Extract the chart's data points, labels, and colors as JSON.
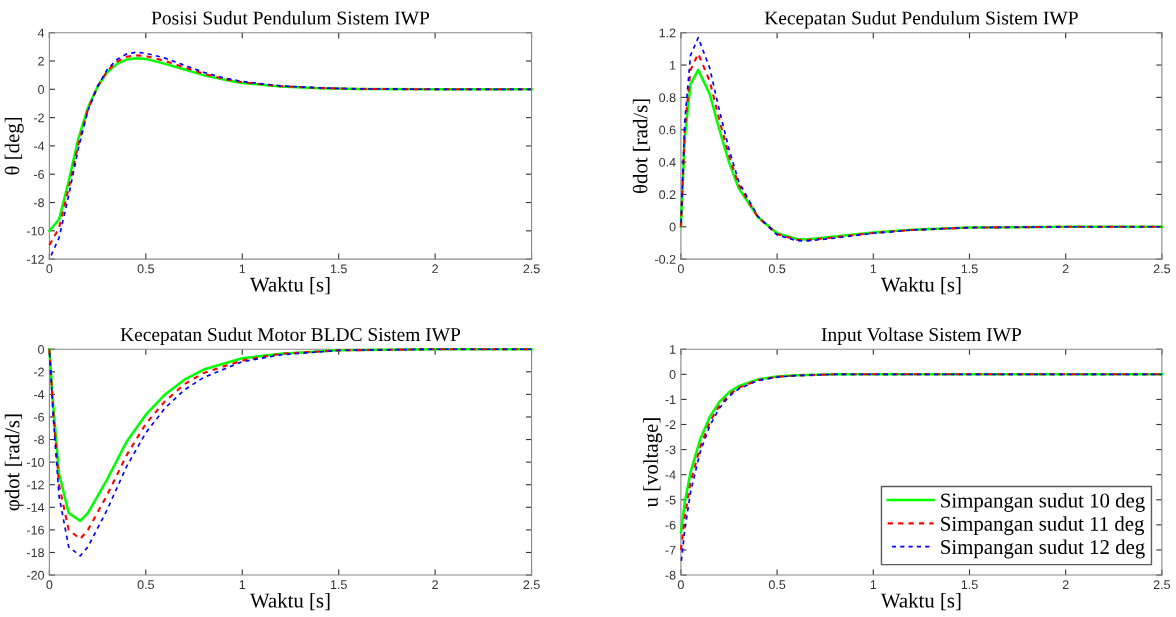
{
  "chart_data": [
    {
      "type": "line",
      "title": "Posisi Sudut Pendulum Sistem IWP",
      "xlabel": "Waktu [s]",
      "ylabel": "θ [deg]",
      "xlim": [
        0,
        2.5
      ],
      "xticks": [
        0,
        0.5,
        1,
        1.5,
        2,
        2.5
      ],
      "ylim": [
        -12,
        4
      ],
      "yticks": [
        -12,
        -10,
        -8,
        -6,
        -4,
        -2,
        0,
        2,
        4
      ],
      "grid": false,
      "legend": false,
      "marker": "none",
      "x": [
        0,
        0.05,
        0.1,
        0.15,
        0.2,
        0.25,
        0.3,
        0.35,
        0.4,
        0.45,
        0.5,
        0.6,
        0.7,
        0.8,
        0.9,
        1.0,
        1.2,
        1.4,
        1.6,
        2.0,
        2.5
      ],
      "series": [
        {
          "color": "#00ff00",
          "line_style": "solid",
          "values": [
            -10,
            -9.2,
            -6.5,
            -3.5,
            -1.3,
            0.2,
            1.2,
            1.8,
            2.1,
            2.2,
            2.15,
            1.8,
            1.4,
            1.0,
            0.7,
            0.45,
            0.2,
            0.08,
            0.03,
            0,
            0
          ]
        },
        {
          "color": "#ff0000",
          "line_style": "dashed",
          "values": [
            -11,
            -9.8,
            -7.0,
            -3.9,
            -1.4,
            0.2,
            1.3,
            1.95,
            2.3,
            2.4,
            2.35,
            2.0,
            1.55,
            1.1,
            0.75,
            0.5,
            0.22,
            0.09,
            0.03,
            0,
            0
          ]
        },
        {
          "color": "#0000ff",
          "line_style": "dashed",
          "values": [
            -12,
            -10.5,
            -7.5,
            -4.2,
            -1.5,
            0.2,
            1.4,
            2.1,
            2.5,
            2.62,
            2.55,
            2.2,
            1.7,
            1.2,
            0.82,
            0.55,
            0.24,
            0.1,
            0.03,
            0,
            0
          ]
        }
      ]
    },
    {
      "type": "line",
      "title": "Kecepatan Sudut Pendulum Sistem IWP",
      "xlabel": "Waktu [s]",
      "ylabel": "θdot [rad/s]",
      "xlim": [
        0,
        2.5
      ],
      "xticks": [
        0,
        0.5,
        1,
        1.5,
        2,
        2.5
      ],
      "ylim": [
        -0.2,
        1.2
      ],
      "yticks": [
        -0.2,
        0,
        0.2,
        0.4,
        0.6,
        0.8,
        1,
        1.2
      ],
      "grid": false,
      "legend": false,
      "marker": "none",
      "x": [
        0,
        0.02,
        0.05,
        0.09,
        0.15,
        0.2,
        0.25,
        0.3,
        0.4,
        0.5,
        0.6,
        0.65,
        0.8,
        1.0,
        1.2,
        1.5,
        2.0,
        2.5
      ],
      "series": [
        {
          "color": "#00ff00",
          "line_style": "solid",
          "values": [
            0,
            0.55,
            0.88,
            0.97,
            0.82,
            0.6,
            0.4,
            0.24,
            0.06,
            -0.04,
            -0.075,
            -0.078,
            -0.06,
            -0.035,
            -0.018,
            -0.005,
            0,
            0
          ]
        },
        {
          "color": "#ff0000",
          "line_style": "dashed",
          "values": [
            0,
            0.6,
            0.97,
            1.07,
            0.9,
            0.66,
            0.44,
            0.26,
            0.06,
            -0.045,
            -0.08,
            -0.083,
            -0.065,
            -0.038,
            -0.02,
            -0.005,
            0,
            0
          ]
        },
        {
          "color": "#0000ff",
          "line_style": "dashed",
          "values": [
            0,
            0.65,
            1.06,
            1.17,
            0.98,
            0.72,
            0.48,
            0.28,
            0.065,
            -0.05,
            -0.085,
            -0.088,
            -0.07,
            -0.04,
            -0.02,
            -0.005,
            0,
            0
          ]
        }
      ]
    },
    {
      "type": "line",
      "title": "Kecepatan Sudut Motor BLDC Sistem IWP",
      "xlabel": "Waktu [s]",
      "ylabel": "φdot [rad/s]",
      "xlim": [
        0,
        2.5
      ],
      "xticks": [
        0,
        0.5,
        1,
        1.5,
        2,
        2.5
      ],
      "ylim": [
        -20,
        0
      ],
      "yticks": [
        -20,
        -18,
        -16,
        -14,
        -12,
        -10,
        -8,
        -6,
        -4,
        -2,
        0
      ],
      "grid": false,
      "legend": false,
      "marker": "none",
      "x": [
        0,
        0.02,
        0.05,
        0.1,
        0.16,
        0.2,
        0.3,
        0.4,
        0.5,
        0.6,
        0.7,
        0.8,
        1.0,
        1.2,
        1.5,
        2.0,
        2.5
      ],
      "series": [
        {
          "color": "#00ff00",
          "line_style": "solid",
          "values": [
            0,
            -5,
            -11,
            -14.5,
            -15.2,
            -14.5,
            -11.5,
            -8.2,
            -5.8,
            -4.0,
            -2.7,
            -1.8,
            -0.8,
            -0.4,
            -0.1,
            0,
            0
          ]
        },
        {
          "color": "#ff0000",
          "line_style": "dashed",
          "values": [
            0,
            -5.5,
            -12,
            -16,
            -16.8,
            -16.0,
            -12.9,
            -9.4,
            -6.6,
            -4.6,
            -3.1,
            -2.1,
            -1.0,
            -0.4,
            -0.1,
            0,
            0
          ]
        },
        {
          "color": "#0000ff",
          "line_style": "dashed",
          "values": [
            0,
            -6,
            -13,
            -17.5,
            -18.3,
            -17.5,
            -14.2,
            -10.4,
            -7.4,
            -5.2,
            -3.6,
            -2.5,
            -1.1,
            -0.5,
            -0.1,
            0,
            0
          ]
        }
      ]
    },
    {
      "type": "line",
      "title": "Input Voltase Sistem IWP",
      "xlabel": "Waktu [s]",
      "ylabel": "u [voltage]",
      "xlim": [
        0,
        2.5
      ],
      "xticks": [
        0,
        0.5,
        1,
        1.5,
        2,
        2.5
      ],
      "ylim": [
        -8,
        1
      ],
      "yticks": [
        -8,
        -7,
        -6,
        -5,
        -4,
        -3,
        -2,
        -1,
        0,
        1
      ],
      "grid": false,
      "legend": "bottom right",
      "marker": "none",
      "x": [
        0,
        0.02,
        0.05,
        0.1,
        0.15,
        0.2,
        0.25,
        0.3,
        0.4,
        0.5,
        0.6,
        0.8,
        1.0,
        1.5,
        2.5
      ],
      "series": [
        {
          "name": "Simpangan sudut 10 deg",
          "color": "#00ff00",
          "line_style": "solid",
          "values": [
            -6.3,
            -5.1,
            -3.9,
            -2.6,
            -1.7,
            -1.1,
            -0.72,
            -0.47,
            -0.2,
            -0.09,
            -0.04,
            0,
            0,
            0,
            0
          ]
        },
        {
          "name": "Simpangan sudut 11 deg",
          "color": "#ff0000",
          "line_style": "dashed",
          "values": [
            -7.0,
            -5.7,
            -4.3,
            -2.9,
            -1.9,
            -1.25,
            -0.82,
            -0.54,
            -0.23,
            -0.1,
            -0.05,
            0,
            0,
            0,
            0
          ]
        },
        {
          "name": "Simpangan sudut 12 deg",
          "color": "#0000ff",
          "line_style": "dashed",
          "values": [
            -7.6,
            -6.2,
            -4.7,
            -3.1,
            -2.05,
            -1.35,
            -0.88,
            -0.58,
            -0.25,
            -0.11,
            -0.05,
            0,
            0,
            0,
            0
          ]
        }
      ]
    }
  ]
}
